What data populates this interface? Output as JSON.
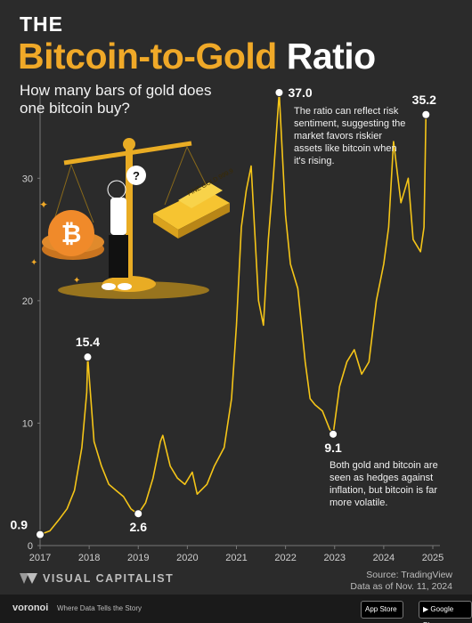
{
  "header": {
    "the": "THE",
    "title_part1": "Bitcoin-to-Gold",
    "title_part2": "Ratio",
    "subtitle": "How many bars of gold does one bitcoin buy?"
  },
  "illustration": {
    "gold_bar_text": "FINE GOLD 999.9",
    "question_mark": "?"
  },
  "annotations": {
    "peak_note": "The ratio can reflect risk sentiment, suggesting the market favors riskier assets like bitcoin when it's rising.",
    "low_note": "Both gold and bitcoin are seen as hedges against inflation, but bitcoin is far more volatile."
  },
  "source": {
    "line1": "Source: TradingView",
    "line2": "Data as of Nov. 11, 2024"
  },
  "brand": {
    "name": "VISUAL CAPITALIST"
  },
  "footer": {
    "logo": "voronoi",
    "tagline": "Where Data Tells the Story",
    "app_store": "App Store",
    "google_play": "Google Play"
  },
  "colors": {
    "background": "#2b2b2b",
    "line": "#f5c518",
    "title_gold": "#f0a928",
    "grid": "#3d3d3d"
  },
  "chart_data": {
    "type": "line",
    "title": "Bitcoin-to-Gold Ratio",
    "subtitle": "How many bars of gold does one bitcoin buy?",
    "xlabel": "",
    "ylabel": "",
    "xlim": [
      2017,
      2025
    ],
    "ylim": [
      0,
      37
    ],
    "x_ticks": [
      "2017",
      "2018",
      "2019",
      "2020",
      "2021",
      "2022",
      "2023",
      "2024",
      "2025"
    ],
    "y_ticks": [
      0,
      10,
      20,
      30
    ],
    "grid": false,
    "x": [
      2017.0,
      2017.2,
      2017.4,
      2017.55,
      2017.7,
      2017.85,
      2017.95,
      2017.97,
      2018.1,
      2018.25,
      2018.4,
      2018.55,
      2018.7,
      2018.85,
      2018.95,
      2019.0,
      2019.15,
      2019.3,
      2019.45,
      2019.5,
      2019.65,
      2019.8,
      2019.95,
      2020.1,
      2020.2,
      2020.4,
      2020.55,
      2020.75,
      2020.9,
      2021.0,
      2021.1,
      2021.2,
      2021.3,
      2021.45,
      2021.55,
      2021.65,
      2021.75,
      2021.87,
      2022.0,
      2022.1,
      2022.25,
      2022.4,
      2022.5,
      2022.6,
      2022.75,
      2022.9,
      2022.97,
      2023.1,
      2023.25,
      2023.4,
      2023.55,
      2023.7,
      2023.85,
      2024.0,
      2024.1,
      2024.2,
      2024.35,
      2024.5,
      2024.6,
      2024.75,
      2024.82,
      2024.86
    ],
    "series": [
      {
        "values": [
          0.9,
          1.2,
          2.2,
          3.0,
          4.5,
          8.0,
          12.5,
          15.4,
          8.5,
          6.5,
          5.0,
          4.5,
          4.0,
          3.0,
          2.7,
          2.6,
          3.5,
          5.5,
          8.5,
          9.0,
          6.5,
          5.5,
          5.0,
          6.0,
          4.2,
          5.0,
          6.5,
          8.0,
          12.0,
          18.0,
          26.0,
          29.0,
          31.0,
          20.0,
          18.0,
          25.0,
          30.0,
          37.0,
          27.0,
          23.0,
          21.0,
          15.0,
          12.0,
          11.5,
          11.0,
          9.5,
          9.1,
          13.0,
          15.0,
          16.0,
          14.0,
          15.0,
          20.0,
          23.0,
          26.0,
          33.0,
          28.0,
          30.0,
          25.0,
          24.0,
          26.0,
          35.2
        ]
      }
    ],
    "labeled_points": [
      {
        "x": 2017.0,
        "y": 0.9,
        "label": "0.9"
      },
      {
        "x": 2017.97,
        "y": 15.4,
        "label": "15.4"
      },
      {
        "x": 2019.0,
        "y": 2.6,
        "label": "2.6"
      },
      {
        "x": 2021.87,
        "y": 37.0,
        "label": "37.0"
      },
      {
        "x": 2022.97,
        "y": 9.1,
        "label": "9.1"
      },
      {
        "x": 2024.86,
        "y": 35.2,
        "label": "35.2"
      }
    ]
  }
}
